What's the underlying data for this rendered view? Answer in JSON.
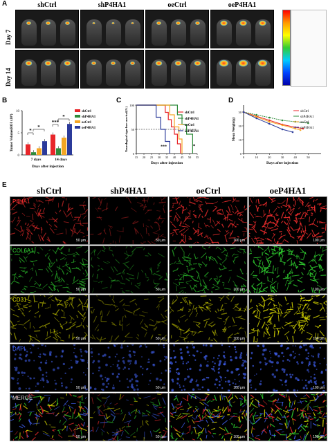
{
  "panel_a": {
    "label": "A",
    "columns": [
      "shCtrl",
      "shP4HA1",
      "oeCtrl",
      "oeP4HA1"
    ],
    "rows": [
      "Day 7",
      "Day 14"
    ]
  },
  "panel_b": {
    "label": "B",
    "chart_data": {
      "type": "bar",
      "categories": [
        "7 days",
        "14 days"
      ],
      "series": [
        {
          "name": "shCtrl",
          "values": [
            2.4,
            4.6
          ],
          "color": "#e8262a"
        },
        {
          "name": "shP4HA1",
          "values": [
            0.6,
            1.5
          ],
          "color": "#2e8b3a"
        },
        {
          "name": "oeCtrl",
          "values": [
            1.5,
            3.9
          ],
          "color": "#f5a623"
        },
        {
          "name": "oeP4HA1",
          "values": [
            3.1,
            7.0
          ],
          "color": "#2b3a9a"
        }
      ],
      "xlabel": "Days after injection",
      "ylabel": "Tumor Volume(ROI x10⁸)",
      "ylim": [
        0,
        10
      ],
      "yticks": [
        "0",
        "5",
        "10"
      ],
      "annotations": [
        "*",
        "*",
        "***",
        "*"
      ]
    }
  },
  "panel_c": {
    "label": "C",
    "chart_data": {
      "type": "line",
      "series": [
        {
          "name": "shCtrl",
          "color": "#e8262a",
          "x": [
            15,
            30,
            34,
            36,
            38,
            40,
            42,
            44
          ],
          "y": [
            100,
            100,
            85,
            70,
            55,
            40,
            20,
            0
          ]
        },
        {
          "name": "shP4HA1",
          "color": "#2e8b3a",
          "x": [
            15,
            38,
            42,
            45,
            48,
            52
          ],
          "y": [
            100,
            100,
            80,
            60,
            40,
            0
          ]
        },
        {
          "name": "oeCtrl",
          "color": "#f5a623",
          "x": [
            15,
            34,
            37,
            40,
            43,
            45
          ],
          "y": [
            100,
            100,
            80,
            55,
            30,
            0
          ]
        },
        {
          "name": "oeP4HA1",
          "color": "#2b3a9a",
          "x": [
            15,
            25,
            28,
            31,
            34,
            37
          ],
          "y": [
            100,
            100,
            75,
            50,
            25,
            0
          ]
        }
      ],
      "xlabel": "Days after injection",
      "ylabel": "Neurological sign-free survival(%)",
      "xticks": [
        "15",
        "20",
        "25",
        "30",
        "35",
        "40",
        "45",
        "50",
        "55"
      ],
      "yticks": [
        "0",
        "50",
        "100"
      ],
      "xlim": [
        15,
        55
      ],
      "ylim": [
        0,
        100
      ],
      "annotations": [
        "***",
        "*"
      ]
    }
  },
  "panel_d": {
    "label": "D",
    "chart_data": {
      "type": "line",
      "series": [
        {
          "name": "shCtrl",
          "color": "#e8262a",
          "x": [
            0,
            10,
            20,
            30,
            40,
            46
          ],
          "y": [
            30,
            27,
            24,
            21,
            19,
            18
          ]
        },
        {
          "name": "shP4HA1",
          "color": "#2e8b3a",
          "x": [
            0,
            10,
            20,
            30,
            40,
            50
          ],
          "y": [
            30,
            28,
            26,
            24,
            23,
            22
          ]
        },
        {
          "name": "oeCtrl",
          "color": "#f5a623",
          "x": [
            0,
            10,
            20,
            30,
            40,
            44
          ],
          "y": [
            30,
            26.5,
            23,
            20.5,
            18,
            17
          ]
        },
        {
          "name": "oeP4HA1",
          "color": "#2b3a9a",
          "x": [
            0,
            10,
            20,
            30,
            38
          ],
          "y": [
            30,
            25.5,
            21.5,
            17.5,
            15.5
          ]
        }
      ],
      "xlabel": "Days after injection",
      "ylabel": "Mean Weight(g)",
      "xticks": [
        "0",
        "10",
        "20",
        "30",
        "40",
        "50"
      ],
      "yticks": [
        "0",
        "10",
        "20",
        "30"
      ],
      "xlim": [
        0,
        60
      ],
      "ylim": [
        0,
        35
      ]
    }
  },
  "panel_e": {
    "label": "E",
    "columns": [
      "shCtrl",
      "shP4HA1",
      "oeCtrl",
      "oeP4HA1"
    ],
    "rows": [
      {
        "label": "P4HA1",
        "color": "#ff3030"
      },
      {
        "label": "COL6A1",
        "color": "#33dd33"
      },
      {
        "label": "CD31",
        "color": "#e6e600"
      },
      {
        "label": "DAPI",
        "color": "#4466ff"
      },
      {
        "label": "MERGE",
        "color": "#dddddd"
      }
    ],
    "scale_labels": [
      "50 μm",
      "50 μm",
      "100 μm",
      "100 μm"
    ]
  }
}
